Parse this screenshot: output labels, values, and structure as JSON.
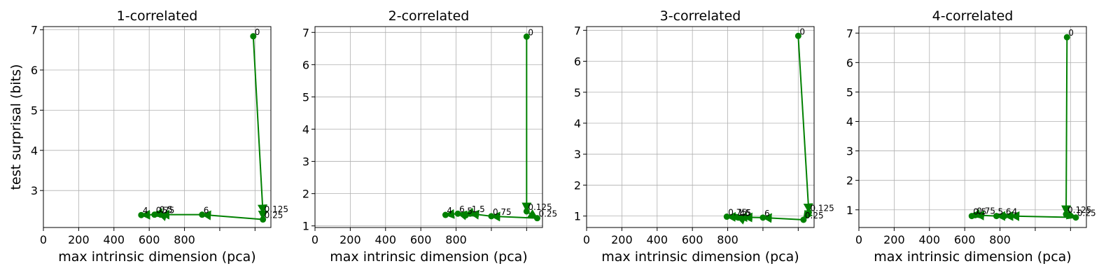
{
  "chart_data": [
    {
      "type": "line",
      "title": "1-correlated",
      "xlabel": "max intrinsic dimension (pca)",
      "ylabel": "test surprisal (bits)",
      "xlim": [
        0,
        1290
      ],
      "ylim": [
        2.08,
        7.08
      ],
      "xticks": [
        0,
        200,
        400,
        600,
        800
      ],
      "yticks": [
        3,
        4,
        5,
        6,
        7
      ],
      "grid": true,
      "color": "#008000",
      "points": [
        {
          "label": "0",
          "x": 1190,
          "y": 6.84
        },
        {
          "label": "0.125",
          "x": 1245,
          "y": 2.43
        },
        {
          "label": "0.25",
          "x": 1245,
          "y": 2.28
        },
        {
          "label": "6",
          "x": 900,
          "y": 2.4
        },
        {
          "label": "5",
          "x": 665,
          "y": 2.4
        },
        {
          "label": "0.5",
          "x": 650,
          "y": 2.42
        },
        {
          "label": "0.75",
          "x": 630,
          "y": 2.4
        },
        {
          "label": "4",
          "x": 555,
          "y": 2.39
        }
      ]
    },
    {
      "type": "line",
      "title": "2-correlated",
      "xlabel": "max intrinsic dimension (pca)",
      "ylabel": "",
      "xlim": [
        0,
        1290
      ],
      "ylim": [
        0.95,
        7.18
      ],
      "xticks": [
        0,
        200,
        400,
        600,
        800
      ],
      "yticks": [
        1,
        2,
        3,
        4,
        5,
        6,
        7
      ],
      "grid": true,
      "color": "#008000",
      "points": [
        {
          "label": "0",
          "x": 1200,
          "y": 6.87
        },
        {
          "label": "0.125",
          "x": 1200,
          "y": 1.45
        },
        {
          "label": "0.25",
          "x": 1260,
          "y": 1.24
        },
        {
          "label": "0.75",
          "x": 1000,
          "y": 1.3
        },
        {
          "label": "1.5",
          "x": 880,
          "y": 1.38
        },
        {
          "label": "5",
          "x": 855,
          "y": 1.33
        },
        {
          "label": "6",
          "x": 810,
          "y": 1.38
        },
        {
          "label": "4",
          "x": 740,
          "y": 1.34
        }
      ]
    },
    {
      "type": "line",
      "title": "3-correlated",
      "xlabel": "max intrinsic dimension (pca)",
      "ylabel": "",
      "xlim": [
        0,
        1290
      ],
      "ylim": [
        0.63,
        7.12
      ],
      "xticks": [
        0,
        200,
        400,
        600,
        800
      ],
      "yticks": [
        1,
        2,
        3,
        4,
        5,
        6,
        7
      ],
      "grid": true,
      "color": "#008000",
      "points": [
        {
          "label": "0",
          "x": 1200,
          "y": 6.82
        },
        {
          "label": "0.125",
          "x": 1260,
          "y": 1.12
        },
        {
          "label": "0.25",
          "x": 1230,
          "y": 0.88
        },
        {
          "label": "6",
          "x": 1000,
          "y": 0.95
        },
        {
          "label": "5",
          "x": 890,
          "y": 0.96
        },
        {
          "label": "4",
          "x": 860,
          "y": 0.95
        },
        {
          "label": "1.5",
          "x": 850,
          "y": 0.97
        },
        {
          "label": "0.75",
          "x": 795,
          "y": 0.98
        }
      ]
    },
    {
      "type": "line",
      "title": "4-correlated",
      "xlabel": "max intrinsic dimension (pca)",
      "ylabel": "",
      "xlim": [
        0,
        1290
      ],
      "ylim": [
        0.4,
        7.22
      ],
      "xticks": [
        0,
        200,
        400,
        600,
        800
      ],
      "yticks": [
        1,
        2,
        3,
        4,
        5,
        6,
        7
      ],
      "grid": true,
      "color": "#008000",
      "points": [
        {
          "label": "0",
          "x": 1180,
          "y": 6.86
        },
        {
          "label": "0.125",
          "x": 1175,
          "y": 0.85
        },
        {
          "label": "0.25",
          "x": 1230,
          "y": 0.74
        },
        {
          "label": "4",
          "x": 860,
          "y": 0.79
        },
        {
          "label": "6",
          "x": 825,
          "y": 0.79
        },
        {
          "label": "5",
          "x": 780,
          "y": 0.79
        },
        {
          "label": "0.75",
          "x": 660,
          "y": 0.82
        },
        {
          "label": "0.5",
          "x": 640,
          "y": 0.79
        }
      ]
    }
  ]
}
